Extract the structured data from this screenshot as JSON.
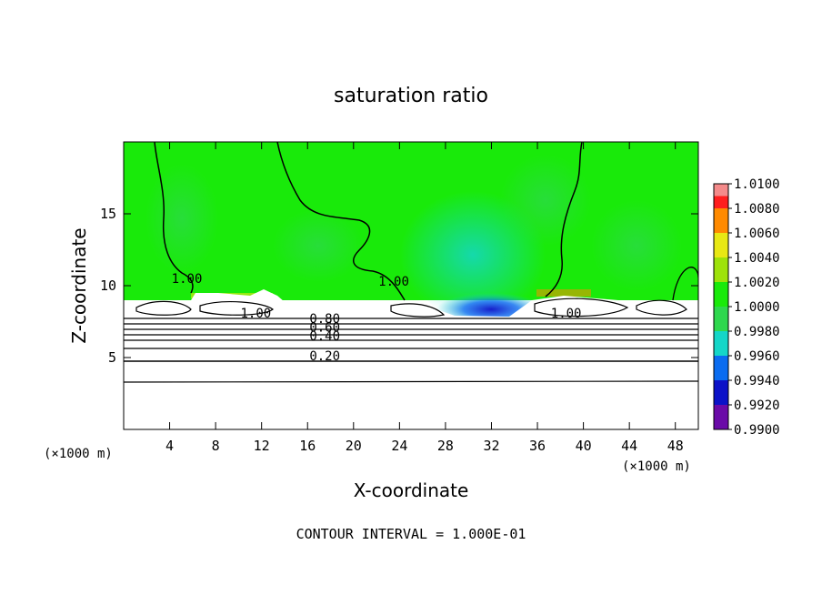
{
  "chart_data": {
    "type": "heatmap",
    "title": "saturation ratio",
    "xlabel": "X-coordinate",
    "ylabel": "Z-coordinate",
    "x_unit_label": "(×1000 m)",
    "y_unit_label": "(×1000 m)",
    "xlim": [
      0,
      50
    ],
    "ylim": [
      0,
      20
    ],
    "x_ticks": [
      4,
      8,
      12,
      16,
      20,
      24,
      28,
      32,
      36,
      40,
      44,
      48
    ],
    "y_ticks": [
      5,
      10,
      15
    ],
    "colorbar": {
      "levels": [
        "0.9900",
        "0.9920",
        "0.9940",
        "0.9960",
        "0.9980",
        "1.0000",
        "1.0020",
        "1.0040",
        "1.0060",
        "1.0080",
        "1.0100"
      ],
      "colors": [
        "#6a0aa8",
        "#0b12c8",
        "#0a6cf0",
        "#14d6c8",
        "#2ed84e",
        "#19ea0a",
        "#9ee20a",
        "#e8e814",
        "#ff8a00",
        "#ff1e1e",
        "#f48a8a"
      ]
    },
    "contour_labels": [
      {
        "text": "1.00",
        "x": 5.5,
        "y": 10.2
      },
      {
        "text": "1.00",
        "x": 23.5,
        "y": 10.0
      },
      {
        "text": "1.00",
        "x": 11.5,
        "y": 7.8
      },
      {
        "text": "1.00",
        "x": 38.5,
        "y": 7.8
      },
      {
        "text": "0.80",
        "x": 17.5,
        "y": 7.4
      },
      {
        "text": "0.60",
        "x": 17.5,
        "y": 6.8
      },
      {
        "text": "0.40",
        "x": 17.5,
        "y": 6.2
      },
      {
        "text": "0.20",
        "x": 17.5,
        "y": 4.8
      }
    ],
    "grid": false,
    "legend": "colorbar-right"
  },
  "footer": {
    "contour_interval": "CONTOUR INTERVAL = 1.000E-01"
  }
}
